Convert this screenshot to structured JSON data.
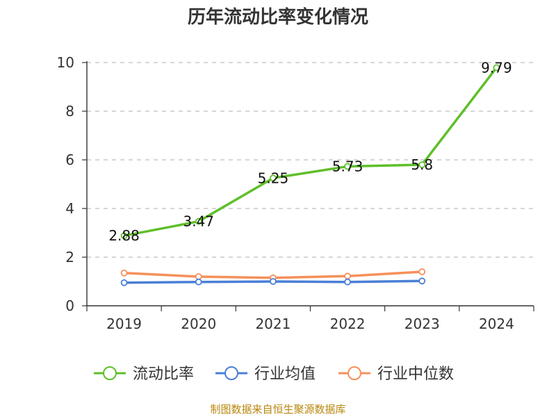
{
  "chart_data": {
    "type": "line",
    "title": "历年流动比率变化情况",
    "categories": [
      "2019",
      "2020",
      "2021",
      "2022",
      "2023",
      "2024"
    ],
    "ylim": [
      0,
      10
    ],
    "yticks": [
      0,
      2,
      4,
      6,
      8,
      10
    ],
    "grid": true,
    "legend_position": "bottom",
    "series": [
      {
        "name": "流动比率",
        "color": "#5fbf2a",
        "values": [
          2.88,
          3.47,
          5.25,
          5.73,
          5.8,
          9.79
        ],
        "labels": [
          "2.88",
          "3.47",
          "5.25",
          "5.73",
          "5.8",
          "9.79"
        ]
      },
      {
        "name": "行业均值",
        "color": "#4a7fd6",
        "values": [
          0.95,
          0.98,
          1.0,
          0.98,
          1.02,
          null
        ]
      },
      {
        "name": "行业中位数",
        "color": "#f5905a",
        "values": [
          1.35,
          1.2,
          1.15,
          1.22,
          1.4,
          null
        ]
      }
    ]
  },
  "source_note": "制图数据来自恒生聚源数据库"
}
